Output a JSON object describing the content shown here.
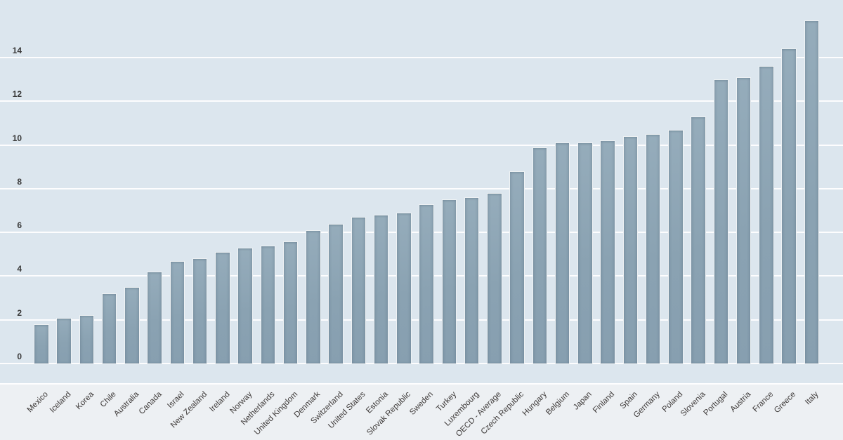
{
  "chart_data": {
    "type": "bar",
    "title": "",
    "xlabel": "",
    "ylabel": "",
    "categories": [
      "Mexico",
      "Iceland",
      "Korea",
      "Chile",
      "Australia",
      "Canada",
      "Israel",
      "New Zealand",
      "Ireland",
      "Norway",
      "Netherlands",
      "United Kingdom",
      "Denmark",
      "Switzerland",
      "United States",
      "Estonia",
      "Slovak Republic",
      "Sweden",
      "Turkey",
      "Luxembourg",
      "OECD - Average",
      "Czech Republic",
      "Hungary",
      "Belgium",
      "Japan",
      "Finland",
      "Spain",
      "Germany",
      "Poland",
      "Slovenia",
      "Portugal",
      "Austria",
      "France",
      "Greece",
      "Italy"
    ],
    "values": [
      1.8,
      2.1,
      2.2,
      3.2,
      3.5,
      4.2,
      4.7,
      4.8,
      5.1,
      5.3,
      5.4,
      5.6,
      6.1,
      6.4,
      6.7,
      6.8,
      6.9,
      7.3,
      7.5,
      7.6,
      7.8,
      8.8,
      9.9,
      10.1,
      10.1,
      10.2,
      10.4,
      10.5,
      10.7,
      11.3,
      13.0,
      13.1,
      13.6,
      14.4,
      15.7
    ],
    "yticks": [
      0,
      2,
      4,
      6,
      8,
      10,
      12,
      14
    ],
    "ylim": [
      0,
      16
    ],
    "grid": "horizontal-white",
    "legend": "none",
    "colors": {
      "bar": "#8ba3b3",
      "plot_background": "#dce6ee",
      "outer_background": "#edf0f3",
      "gridline": "#ffffff",
      "tick_label": "#3a3a3a",
      "category_label": "#3e3a39"
    }
  }
}
